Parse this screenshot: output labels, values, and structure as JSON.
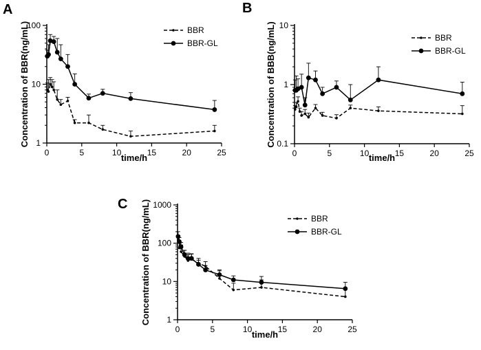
{
  "chart_data": [
    {
      "type": "line",
      "panel": "A",
      "xlabel": "time/h",
      "ylabel": "Concentration of BBR(ng/mL)",
      "xlim": [
        0,
        25
      ],
      "ylim": [
        1,
        100
      ],
      "yscale": "log",
      "xticks": [
        "0",
        "5",
        "10",
        "15",
        "20",
        "25"
      ],
      "yticks": [
        "1",
        "10",
        "100"
      ],
      "legend_position": "top-right",
      "series": [
        {
          "name": "BBR",
          "style": "dashed",
          "x": [
            0.083,
            0.25,
            0.5,
            0.75,
            1,
            1.5,
            2,
            3,
            4,
            6,
            8,
            12,
            24
          ],
          "values": [
            8.0,
            7.5,
            10.0,
            9.0,
            8.0,
            5.5,
            4.5,
            5.2,
            2.2,
            2.2,
            1.7,
            1.3,
            1.6
          ],
          "error": [
            2.5,
            4.5,
            3.0,
            3.0,
            3.0,
            2.5,
            1.0,
            0.8,
            0.3,
            0.8,
            0.3,
            0.3,
            0.4
          ]
        },
        {
          "name": "BBR-GL",
          "style": "solid",
          "x": [
            0.083,
            0.25,
            0.5,
            1,
            1.5,
            2,
            3,
            4,
            6,
            8,
            12,
            24
          ],
          "values": [
            30,
            32,
            55,
            53,
            35,
            27,
            20,
            10,
            5.8,
            7.0,
            5.7,
            3.7
          ],
          "error": [
            8,
            15,
            15,
            12,
            25,
            20,
            12,
            5,
            1.0,
            1.2,
            1.5,
            1.6
          ]
        }
      ]
    },
    {
      "type": "line",
      "panel": "B",
      "xlabel": "time/h",
      "ylabel": "Concentration of BBB(ng/mL)",
      "xlim": [
        0,
        25
      ],
      "ylim": [
        0.1,
        10
      ],
      "yscale": "log",
      "xticks": [
        "0",
        "5",
        "10",
        "15",
        "20",
        "25"
      ],
      "yticks": [
        "0.1",
        "1",
        "10"
      ],
      "legend_position": "top-right",
      "series": [
        {
          "name": "BBR",
          "style": "dashed",
          "x": [
            0.083,
            0.25,
            0.5,
            0.75,
            1,
            1.5,
            2,
            3,
            4,
            6,
            8,
            12,
            24
          ],
          "values": [
            0.38,
            0.42,
            0.52,
            0.35,
            0.3,
            0.32,
            0.28,
            0.4,
            0.3,
            0.27,
            0.4,
            0.36,
            0.32
          ],
          "error": [
            0.06,
            0.08,
            0.1,
            0.05,
            0.05,
            0.06,
            0.05,
            0.06,
            0.04,
            0.04,
            0.05,
            0.06,
            0.12
          ]
        },
        {
          "name": "BBR-GL",
          "style": "solid",
          "x": [
            0.083,
            0.25,
            0.5,
            1,
            1.5,
            2,
            3,
            4,
            6,
            8,
            12,
            24
          ],
          "values": [
            0.8,
            0.8,
            0.85,
            0.9,
            0.45,
            1.3,
            1.2,
            0.7,
            0.9,
            0.55,
            1.2,
            0.7
          ],
          "error": [
            0.4,
            0.6,
            0.4,
            0.6,
            0.15,
            1.0,
            0.5,
            0.2,
            0.25,
            0.45,
            0.8,
            0.4
          ]
        }
      ]
    },
    {
      "type": "line",
      "panel": "C",
      "xlabel": "time/h",
      "ylabel": "Concentration of BBR(ng/mL)",
      "xlim": [
        0,
        25
      ],
      "ylim": [
        1,
        1000
      ],
      "yscale": "log",
      "xticks": [
        "0",
        "5",
        "10",
        "15",
        "20",
        "25"
      ],
      "yticks": [
        "1",
        "10",
        "100",
        "1000"
      ],
      "legend_position": "top-right",
      "series": [
        {
          "name": "BBR",
          "style": "dashed",
          "x": [
            0.083,
            0.25,
            0.5,
            1,
            1.5,
            2,
            3,
            4,
            6,
            8,
            12,
            24
          ],
          "values": [
            120,
            75,
            60,
            45,
            35,
            38,
            30,
            25,
            12,
            6,
            7,
            4
          ],
          "error": [
            40,
            25,
            30,
            20,
            15,
            15,
            10,
            8,
            7,
            3,
            4,
            2.5
          ]
        },
        {
          "name": "BBR-GL",
          "style": "solid",
          "x": [
            0.083,
            0.25,
            0.5,
            1,
            1.5,
            2,
            3,
            4,
            6,
            8,
            12,
            24
          ],
          "values": [
            150,
            110,
            80,
            50,
            40,
            40,
            28,
            20,
            15,
            11,
            9.5,
            6.5
          ],
          "error": [
            50,
            30,
            25,
            15,
            15,
            12,
            8,
            6,
            5,
            3,
            4,
            3
          ]
        }
      ]
    }
  ]
}
